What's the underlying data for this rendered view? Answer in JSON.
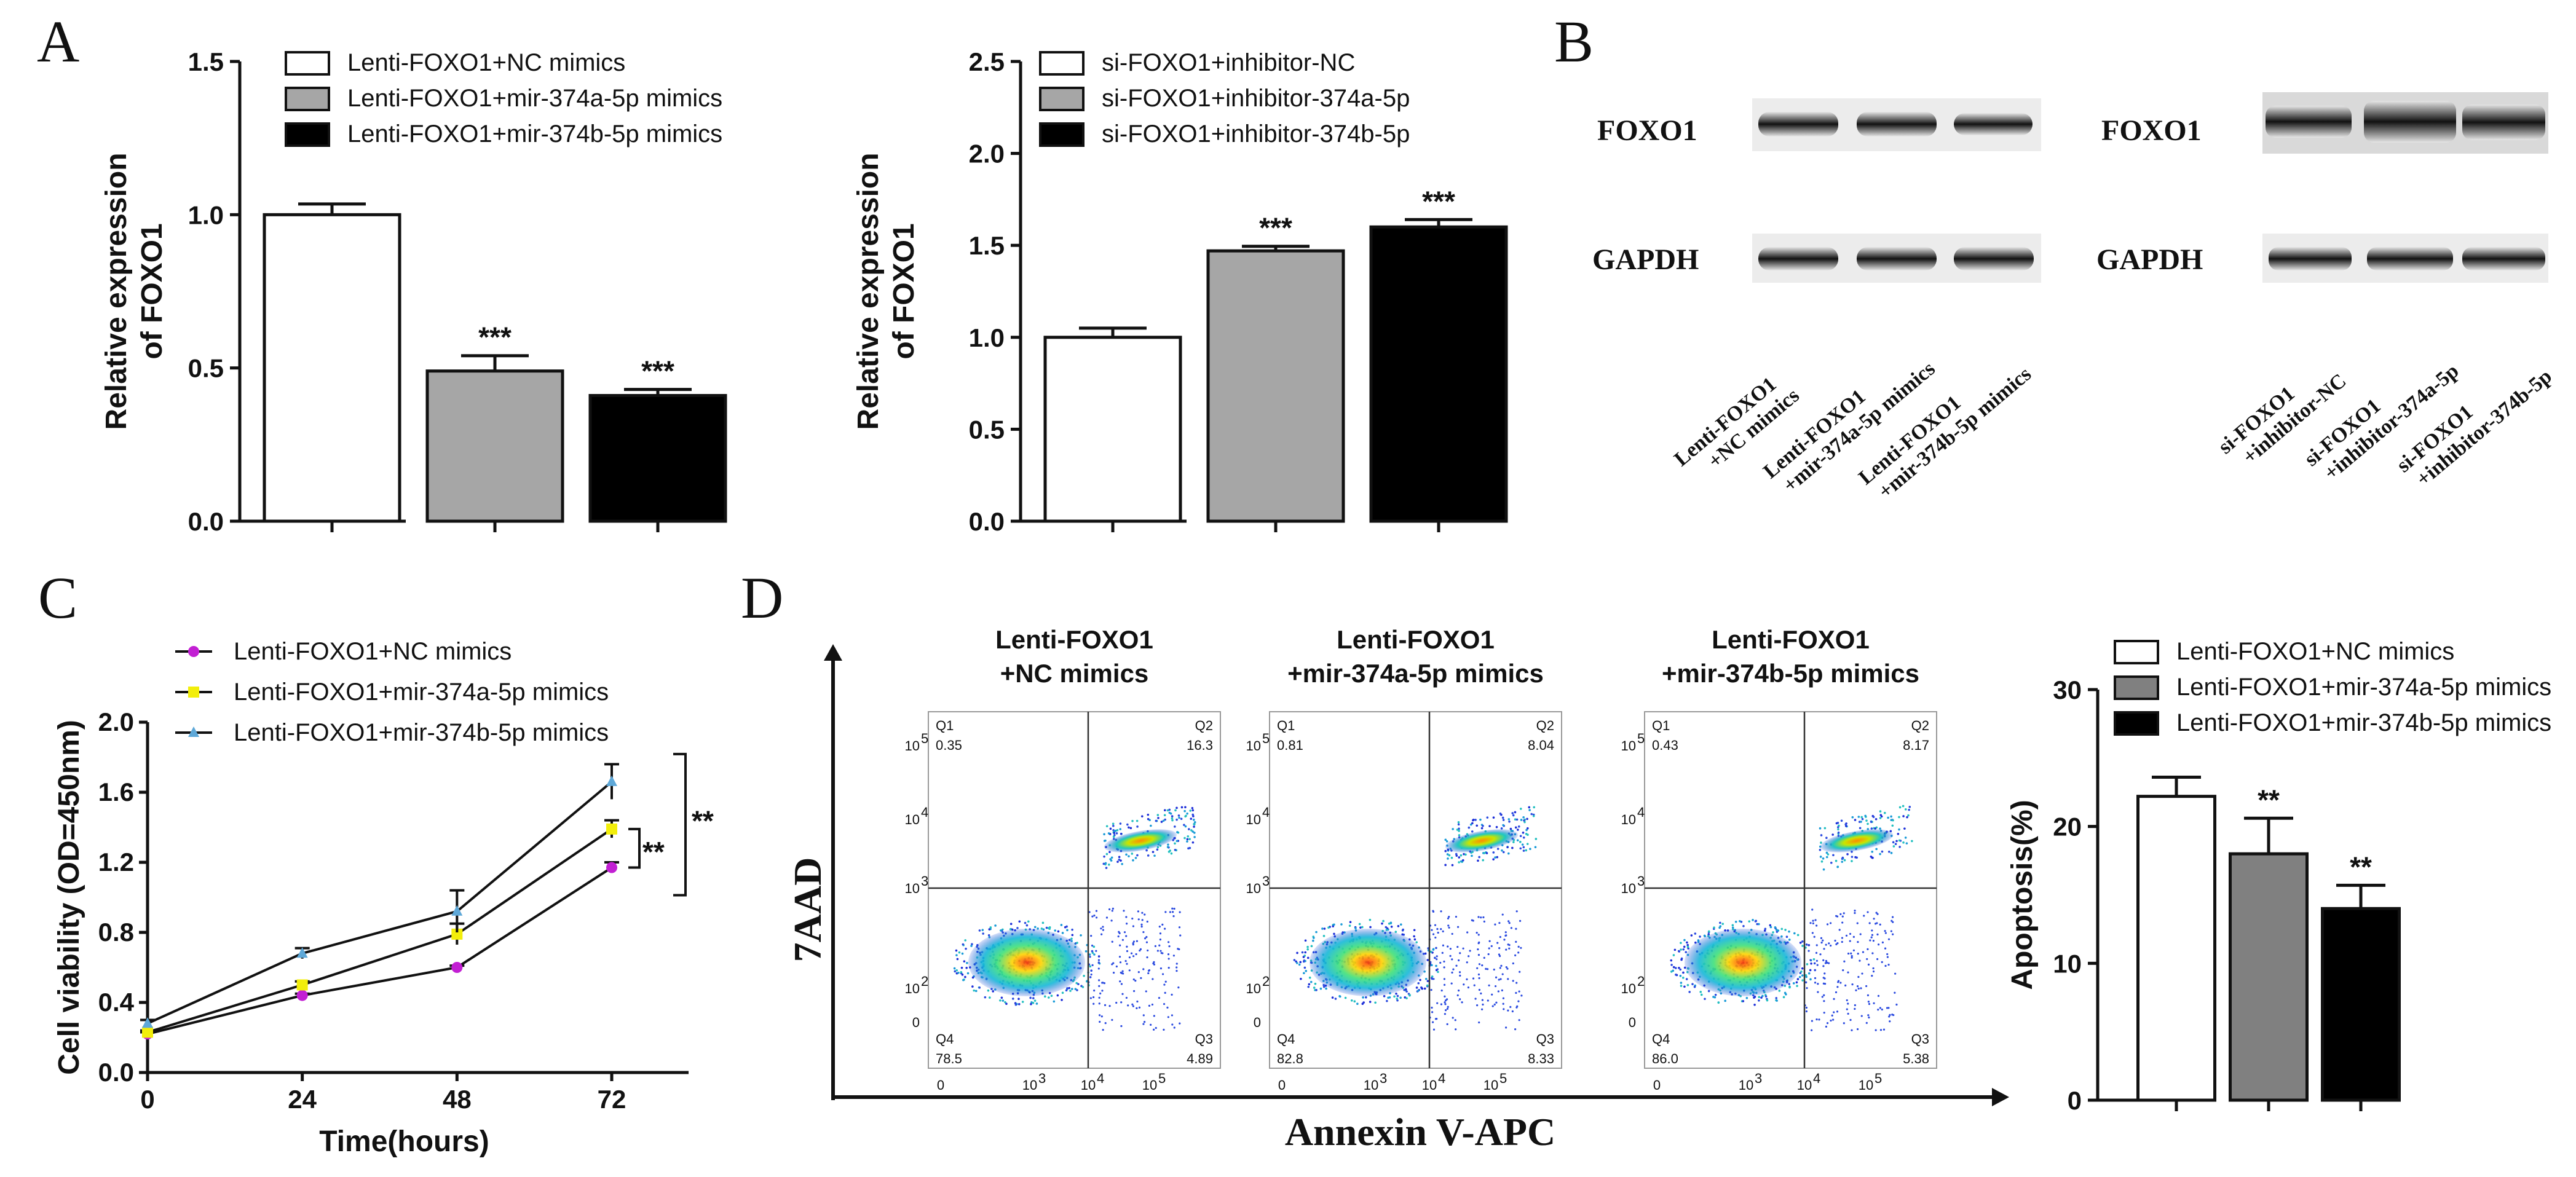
{
  "panels": {
    "a": "A",
    "b": "B",
    "c": "C",
    "d": "D"
  },
  "colors": {
    "white": "#ffffff",
    "gray": "#a6a6a6",
    "dark": "#000000",
    "darkgray": "#808080",
    "purple": "#c21fd3",
    "yellow": "#f2ee0a",
    "cyan": "#5ea8d8"
  },
  "chart_data": [
    {
      "id": "A1",
      "type": "bar",
      "ylabel": [
        "Relative expression",
        "of FOXO1"
      ],
      "ylim": [
        0,
        1.5
      ],
      "yticks": [
        "0.0",
        "0.5",
        "1.0",
        "1.5"
      ],
      "series": [
        {
          "name": "Lenti-FOXO1+NC mimics",
          "value": 1.0,
          "err": 0.035,
          "sig": ""
        },
        {
          "name": "Lenti-FOXO1+mir-374a-5p mimics",
          "value": 0.49,
          "err": 0.05,
          "sig": "***"
        },
        {
          "name": "Lenti-FOXO1+mir-374b-5p mimics",
          "value": 0.41,
          "err": 0.02,
          "sig": "***"
        }
      ]
    },
    {
      "id": "A2",
      "type": "bar",
      "ylabel": [
        "Relative expression",
        "of FOXO1"
      ],
      "ylim": [
        0,
        2.5
      ],
      "yticks": [
        "0.0",
        "0.5",
        "1.0",
        "1.5",
        "2.0",
        "2.5"
      ],
      "series": [
        {
          "name": "si-FOXO1+inhibitor-NC",
          "value": 1.0,
          "err": 0.05,
          "sig": ""
        },
        {
          "name": "si-FOXO1+inhibitor-374a-5p",
          "value": 1.47,
          "err": 0.025,
          "sig": "***"
        },
        {
          "name": "si-FOXO1+inhibitor-374b-5p",
          "value": 1.6,
          "err": 0.04,
          "sig": "***"
        }
      ]
    },
    {
      "id": "C",
      "type": "line",
      "xlabel": "Time(hours)",
      "ylabel": "Cell viability (OD=450nm)",
      "x": [
        0,
        24,
        48,
        72
      ],
      "xticks": [
        "0",
        "24",
        "48",
        "72"
      ],
      "ylim": [
        0,
        2.0
      ],
      "yticks": [
        "0.0",
        "0.4",
        "0.8",
        "1.2",
        "1.6",
        "2.0"
      ],
      "series": [
        {
          "name": "Lenti-FOXO1+NC mimics",
          "values": [
            0.22,
            0.44,
            0.6,
            1.17
          ],
          "err": [
            0.01,
            0.01,
            0.01,
            0.03
          ]
        },
        {
          "name": "Lenti-FOXO1+mir-374a-5p mimics",
          "values": [
            0.23,
            0.5,
            0.79,
            1.39
          ],
          "err": [
            0.01,
            0.02,
            0.06,
            0.05
          ]
        },
        {
          "name": "Lenti-FOXO1+mir-374b-5p mimics",
          "values": [
            0.28,
            0.68,
            0.92,
            1.66
          ],
          "err": [
            0.02,
            0.03,
            0.12,
            0.1
          ]
        }
      ],
      "sig": [
        "**",
        "**"
      ]
    },
    {
      "id": "D2",
      "type": "bar",
      "ylabel": "Apoptosis(%)",
      "ylim": [
        0,
        30
      ],
      "yticks": [
        "0",
        "10",
        "20",
        "30"
      ],
      "series": [
        {
          "name": "Lenti-FOXO1+NC mimics",
          "value": 22.2,
          "err": 1.4,
          "sig": ""
        },
        {
          "name": "Lenti-FOXO1+mir-374a-5p mimics",
          "value": 18.0,
          "err": 2.6,
          "sig": "**"
        },
        {
          "name": "Lenti-FOXO1+mir-374b-5p mimics",
          "value": 14.0,
          "err": 1.7,
          "sig": "**"
        }
      ]
    }
  ],
  "blots": {
    "left": {
      "rows": [
        "FOXO1",
        "GAPDH"
      ],
      "lanes": [
        [
          "Lenti-FOXO1",
          "+NC mimics"
        ],
        [
          "Lenti-FOXO1",
          "+mir-374a-5p mimics"
        ],
        [
          "Lenti-FOXO1",
          "+mir-374b-5p mimics"
        ]
      ]
    },
    "right": {
      "rows": [
        "FOXO1",
        "GAPDH"
      ],
      "lanes": [
        [
          "si-FOXO1",
          "+inhibitor-NC"
        ],
        [
          "si-FOXO1",
          "+inhibitor-374a-5p"
        ],
        [
          "si-FOXO1",
          "+inhibitor-374b-5p"
        ]
      ]
    }
  },
  "flow": {
    "yaxis": "7AAD",
    "xaxis": "Annexin V-APC",
    "plots": [
      {
        "title": [
          "Lenti-FOXO1",
          "+NC mimics"
        ],
        "q1": "0.35",
        "q2": "16.3",
        "q3": "4.89",
        "q4": "78.5"
      },
      {
        "title": [
          "Lenti-FOXO1",
          "+mir-374a-5p mimics"
        ],
        "q1": "0.81",
        "q2": "8.04",
        "q3": "8.33",
        "q4": "82.8"
      },
      {
        "title": [
          "Lenti-FOXO1",
          "+mir-374b-5p mimics"
        ],
        "q1": "0.43",
        "q2": "8.17",
        "q3": "5.38",
        "q4": "86.0"
      }
    ],
    "quadrant_labels": {
      "q1": "Q1",
      "q2": "Q2",
      "q3": "Q3",
      "q4": "Q4"
    },
    "ticks": [
      "0",
      "10",
      "3",
      "4",
      "5",
      "2"
    ]
  }
}
